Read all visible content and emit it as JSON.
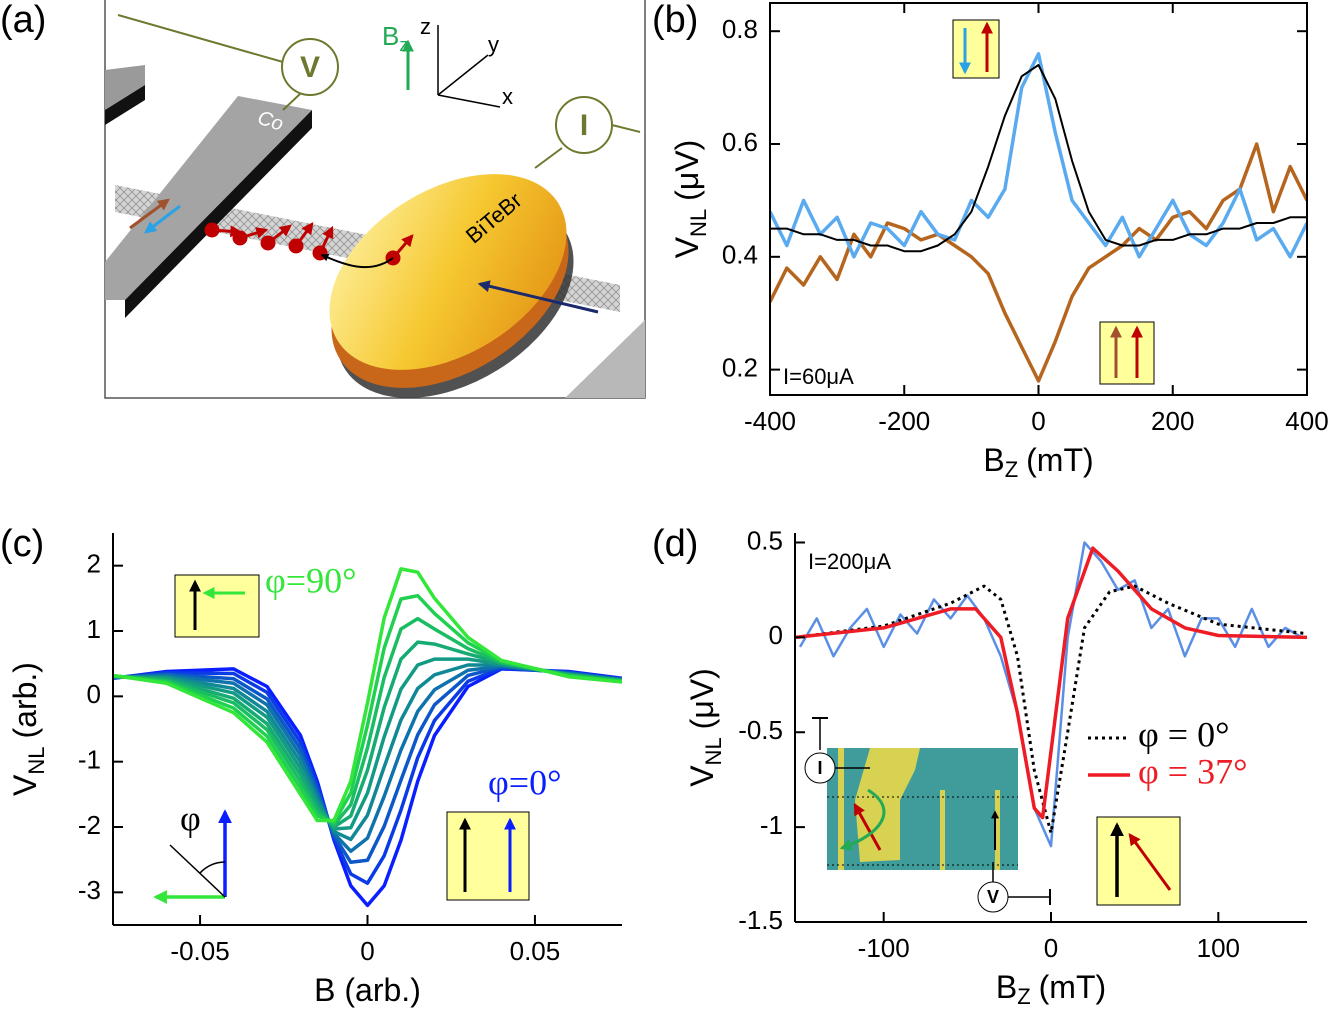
{
  "diagram": {
    "panel_label": "(a)",
    "labels": {
      "voltage": "V",
      "current": "I",
      "electrode": "Co",
      "flake": "BiTeBr",
      "field": "B",
      "field_sub": "z",
      "axis_z": "z",
      "axis_y": "y",
      "axis_x": "x"
    }
  },
  "chart_data": [
    {
      "panel_label": "(b)",
      "type": "line",
      "frame": "box",
      "x": [
        -400,
        -375,
        -350,
        -325,
        -300,
        -275,
        -250,
        -225,
        -200,
        -175,
        -150,
        -125,
        -100,
        -75,
        -50,
        -25,
        0,
        25,
        50,
        75,
        100,
        125,
        150,
        175,
        200,
        225,
        250,
        275,
        300,
        325,
        350,
        375,
        400
      ],
      "xlim": [
        -400,
        400
      ],
      "xticks": [
        -400,
        -200,
        0,
        200,
        400
      ],
      "ylim": [
        0.155,
        0.85
      ],
      "yticks": [
        0.2,
        0.4,
        0.6,
        0.8
      ],
      "x_label": "B",
      "x_label_sub": "Z",
      "x_label_unit": "(mT)",
      "y_label": "V",
      "y_label_sub": "NL",
      "y_label_unit": "(μV)",
      "annotations": [
        "I=60μA"
      ],
      "series": [
        {
          "color": "#b5651d",
          "values": [
            0.32,
            0.38,
            0.35,
            0.4,
            0.36,
            0.44,
            0.4,
            0.46,
            0.45,
            0.43,
            0.44,
            0.42,
            0.4,
            0.37,
            0.3,
            0.24,
            0.18,
            0.25,
            0.33,
            0.38,
            0.4,
            0.42,
            0.45,
            0.43,
            0.47,
            0.48,
            0.45,
            0.5,
            0.52,
            0.6,
            0.48,
            0.56,
            0.5
          ]
        },
        {
          "color": "#5aaaf0",
          "values": [
            0.48,
            0.42,
            0.5,
            0.44,
            0.47,
            0.4,
            0.46,
            0.45,
            0.42,
            0.48,
            0.44,
            0.43,
            0.5,
            0.47,
            0.52,
            0.7,
            0.76,
            0.62,
            0.5,
            0.46,
            0.42,
            0.47,
            0.4,
            0.45,
            0.5,
            0.44,
            0.42,
            0.46,
            0.52,
            0.43,
            0.45,
            0.4,
            0.46
          ]
        },
        {
          "color": "#000000",
          "values": [
            0.45,
            0.45,
            0.44,
            0.44,
            0.43,
            0.43,
            0.42,
            0.42,
            0.41,
            0.41,
            0.42,
            0.44,
            0.48,
            0.56,
            0.65,
            0.72,
            0.74,
            0.68,
            0.57,
            0.48,
            0.43,
            0.42,
            0.42,
            0.43,
            0.43,
            0.44,
            0.44,
            0.45,
            0.45,
            0.46,
            0.46,
            0.47,
            0.47
          ]
        }
      ]
    },
    {
      "panel_label": "(c)",
      "type": "line",
      "frame": "axes",
      "x": [
        -0.08,
        -0.06,
        -0.04,
        -0.03,
        -0.02,
        -0.015,
        -0.01,
        -0.005,
        0,
        0.005,
        0.01,
        0.015,
        0.02,
        0.03,
        0.04,
        0.06,
        0.08
      ],
      "xlim": [
        -0.076,
        0.076
      ],
      "xticks": [
        -0.05,
        0,
        0.05
      ],
      "ylim": [
        -3.5,
        2.5
      ],
      "yticks": [
        -3,
        -2,
        -1,
        0,
        1,
        2
      ],
      "x_label": "B (arb.)",
      "y_label": "V",
      "y_label_sub": "NL",
      "y_label_unit": "(arb.)",
      "annotations": [
        "φ=90°",
        "φ=0°",
        "φ"
      ],
      "series": [
        {
          "color": "#0a1fff",
          "values": [
            0.25,
            0.38,
            0.42,
            0.15,
            -0.6,
            -1.3,
            -2.2,
            -2.9,
            -3.2,
            -2.9,
            -2.2,
            -1.3,
            -0.6,
            0.15,
            0.42,
            0.38,
            0.25
          ]
        },
        {
          "color": "#0a3be6",
          "values": [
            0.26,
            0.36,
            0.35,
            0.06,
            -0.7,
            -1.37,
            -2.17,
            -2.72,
            -2.86,
            -2.44,
            -1.74,
            -0.94,
            -0.37,
            0.23,
            0.43,
            0.37,
            0.24
          ]
        },
        {
          "color": "#0c58c8",
          "values": [
            0.27,
            0.34,
            0.27,
            -0.04,
            -0.8,
            -1.43,
            -2.13,
            -2.54,
            -2.51,
            -1.99,
            -1.28,
            -0.59,
            -0.13,
            0.32,
            0.45,
            0.36,
            0.24
          ]
        },
        {
          "color": "#0e72ac",
          "values": [
            0.28,
            0.32,
            0.2,
            -0.13,
            -0.9,
            -1.5,
            -2.1,
            -2.37,
            -2.17,
            -1.53,
            -0.82,
            -0.23,
            0.1,
            0.4,
            0.46,
            0.35,
            0.23
          ]
        },
        {
          "color": "#108896",
          "values": [
            0.29,
            0.3,
            0.12,
            -0.23,
            -1.0,
            -1.57,
            -2.07,
            -2.19,
            -1.82,
            -1.08,
            -0.36,
            0.12,
            0.33,
            0.48,
            0.48,
            0.34,
            0.23
          ]
        },
        {
          "color": "#139a84",
          "values": [
            0.31,
            0.28,
            0.05,
            -0.32,
            -1.1,
            -1.63,
            -2.03,
            -2.01,
            -1.48,
            -0.62,
            0.11,
            0.48,
            0.57,
            0.57,
            0.49,
            0.34,
            0.22
          ]
        },
        {
          "color": "#16ab72",
          "values": [
            0.32,
            0.26,
            -0.03,
            -0.42,
            -1.2,
            -1.7,
            -2.0,
            -1.83,
            -1.13,
            -0.17,
            0.57,
            0.83,
            0.8,
            0.65,
            0.51,
            0.33,
            0.22
          ]
        },
        {
          "color": "#1abd62",
          "values": [
            0.33,
            0.24,
            -0.1,
            -0.51,
            -1.3,
            -1.77,
            -1.97,
            -1.66,
            -0.79,
            0.29,
            1.03,
            1.19,
            1.03,
            0.73,
            0.52,
            0.32,
            0.21
          ]
        },
        {
          "color": "#20d050",
          "values": [
            0.34,
            0.22,
            -0.18,
            -0.61,
            -1.4,
            -1.83,
            -1.93,
            -1.48,
            -0.44,
            0.74,
            1.49,
            1.54,
            1.27,
            0.82,
            0.54,
            0.31,
            0.21
          ]
        },
        {
          "color": "#33e63a",
          "values": [
            0.35,
            0.2,
            -0.25,
            -0.7,
            -1.5,
            -1.9,
            -1.9,
            -1.3,
            -0.1,
            1.2,
            1.95,
            1.9,
            1.5,
            0.9,
            0.55,
            0.3,
            0.2
          ]
        }
      ]
    },
    {
      "panel_label": "(d)",
      "type": "line",
      "frame": "axes",
      "legend": "right",
      "xlim": [
        -153,
        153
      ],
      "xticks": [
        -100,
        0,
        100
      ],
      "ylim": [
        -1.5,
        0.55
      ],
      "yticks": [
        -1.5,
        -1,
        -0.5,
        0,
        0.5
      ],
      "x_label": "B",
      "x_label_sub": "Z",
      "x_label_unit": "(mT)",
      "y_label": "V",
      "y_label_sub": "NL",
      "y_label_unit": "(μV)",
      "annotations": [
        "I=200μA",
        "I",
        "V"
      ],
      "series": [
        {
          "color": "#5b8fe6",
          "line_style": "solid",
          "x": [
            -150,
            -140,
            -130,
            -120,
            -110,
            -100,
            -90,
            -80,
            -70,
            -60,
            -50,
            -40,
            -30,
            -20,
            -10,
            0,
            10,
            20,
            30,
            40,
            50,
            60,
            70,
            80,
            90,
            100,
            110,
            120,
            130,
            140,
            150
          ],
          "values": [
            -0.05,
            0.1,
            -0.1,
            0.05,
            0.15,
            -0.05,
            0.12,
            0.02,
            0.2,
            0.1,
            0.22,
            0.1,
            -0.1,
            -0.4,
            -0.9,
            -1.1,
            0.0,
            0.5,
            0.4,
            0.25,
            0.3,
            0.05,
            0.15,
            -0.1,
            0.1,
            0.1,
            -0.05,
            0.15,
            -0.05,
            0.05,
            0.0
          ]
        },
        {
          "name": "φ = 0°",
          "color": "#000000",
          "line_style": "dotted",
          "x": [
            -153,
            -100,
            -60,
            -40,
            -30,
            -20,
            -10,
            0,
            10,
            20,
            35,
            50,
            70,
            100,
            153
          ],
          "values": [
            0,
            0.06,
            0.18,
            0.27,
            0.2,
            -0.1,
            -0.7,
            -1.03,
            -0.5,
            0.05,
            0.24,
            0.27,
            0.18,
            0.07,
            0.02
          ]
        },
        {
          "name": "φ = 37°",
          "color": "#ee1c24",
          "line_style": "solid",
          "x": [
            -153,
            -100,
            -60,
            -45,
            -30,
            -20,
            -10,
            -5,
            0,
            10,
            25,
            40,
            60,
            80,
            100,
            153
          ],
          "values": [
            0,
            0.05,
            0.15,
            0.15,
            0,
            -0.4,
            -0.9,
            -0.95,
            -0.6,
            0.1,
            0.47,
            0.35,
            0.15,
            0.05,
            0.01,
            0
          ]
        }
      ]
    }
  ]
}
